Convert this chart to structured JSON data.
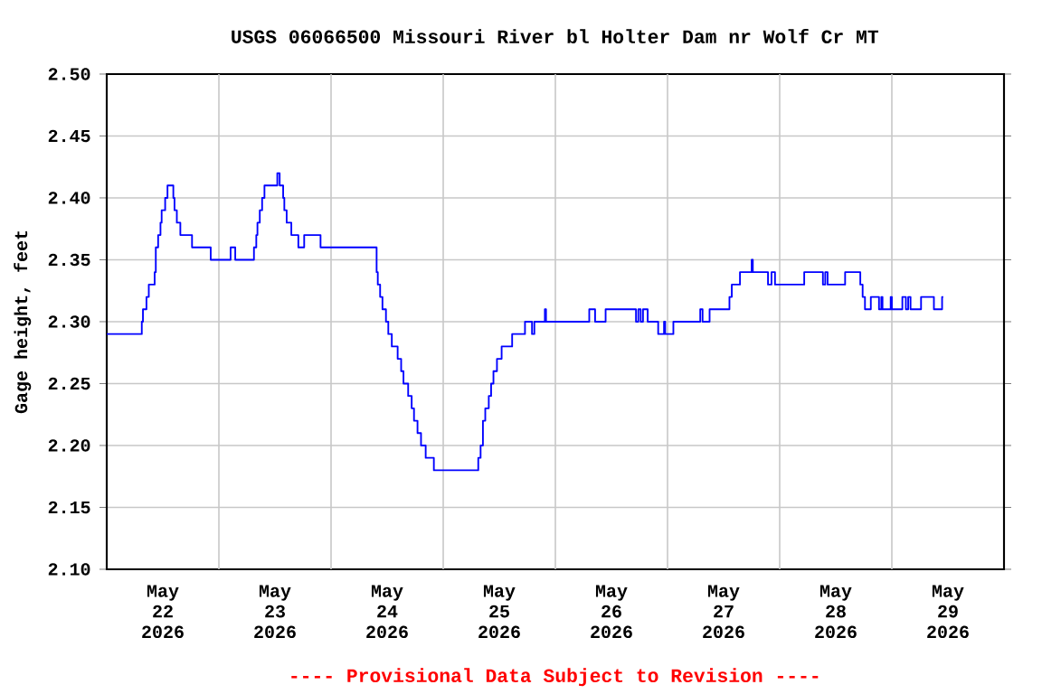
{
  "chart_data": {
    "type": "step",
    "title": "USGS 06066500 Missouri River bl Holter Dam nr Wolf Cr MT",
    "ylabel": "Gage height, feet",
    "annotations": [
      "---- Provisional Data Subject to Revision ----"
    ],
    "xlim": [
      "2026-05-22T00:00",
      "2026-05-30T00:00"
    ],
    "ylim": [
      2.1,
      2.5
    ],
    "xticks": [
      {
        "value": "2026-05-22T12:00",
        "label": "May 22 2026"
      },
      {
        "value": "2026-05-23T00:00",
        "label": null
      },
      {
        "value": "2026-05-23T12:00",
        "label": "May 23 2026"
      },
      {
        "value": "2026-05-24T00:00",
        "label": null
      },
      {
        "value": "2026-05-24T12:00",
        "label": "May 24 2026"
      },
      {
        "value": "2026-05-25T00:00",
        "label": null
      },
      {
        "value": "2026-05-25T12:00",
        "label": "May 25 2026"
      },
      {
        "value": "2026-05-26T00:00",
        "label": null
      },
      {
        "value": "2026-05-26T12:00",
        "label": "May 26 2026"
      },
      {
        "value": "2026-05-27T00:00",
        "label": null
      },
      {
        "value": "2026-05-27T12:00",
        "label": "May 27 2026"
      },
      {
        "value": "2026-05-28T00:00",
        "label": null
      },
      {
        "value": "2026-05-28T12:00",
        "label": "May 28 2026"
      },
      {
        "value": "2026-05-29T00:00",
        "label": null
      },
      {
        "value": "2026-05-29T12:00",
        "label": "May 29 2026"
      }
    ],
    "yticks": [
      {
        "value": 2.1,
        "label": "2.10"
      },
      {
        "value": 2.15,
        "label": "2.15"
      },
      {
        "value": 2.2,
        "label": "2.20"
      },
      {
        "value": 2.25,
        "label": "2.25"
      },
      {
        "value": 2.3,
        "label": "2.30"
      },
      {
        "value": 2.35,
        "label": "2.35"
      },
      {
        "value": 2.4,
        "label": "2.40"
      },
      {
        "value": 2.45,
        "label": "2.45"
      },
      {
        "value": 2.5,
        "label": "2.50"
      }
    ],
    "grid": true,
    "color": "#0000ff",
    "x": [
      "2026-05-22T00:00",
      "2026-05-22T07:30",
      "2026-05-22T07:45",
      "2026-05-22T08:30",
      "2026-05-22T09:00",
      "2026-05-22T10:15",
      "2026-05-22T10:30",
      "2026-05-22T11:00",
      "2026-05-22T11:30",
      "2026-05-22T11:45",
      "2026-05-22T12:30",
      "2026-05-22T13:00",
      "2026-05-22T14:15",
      "2026-05-22T14:30",
      "2026-05-22T15:00",
      "2026-05-22T15:45",
      "2026-05-22T18:15",
      "2026-05-22T22:15",
      "2026-05-23T02:30",
      "2026-05-23T03:30",
      "2026-05-23T07:30",
      "2026-05-23T08:00",
      "2026-05-23T08:15",
      "2026-05-23T08:45",
      "2026-05-23T09:15",
      "2026-05-23T09:45",
      "2026-05-23T12:30",
      "2026-05-23T13:00",
      "2026-05-23T13:45",
      "2026-05-23T14:00",
      "2026-05-23T14:30",
      "2026-05-23T15:30",
      "2026-05-23T17:00",
      "2026-05-23T18:15",
      "2026-05-23T21:45",
      "2026-05-24T09:45",
      "2026-05-24T10:00",
      "2026-05-24T10:30",
      "2026-05-24T11:00",
      "2026-05-24T11:45",
      "2026-05-24T12:15",
      "2026-05-24T13:00",
      "2026-05-24T14:15",
      "2026-05-24T15:00",
      "2026-05-24T15:30",
      "2026-05-24T16:30",
      "2026-05-24T17:15",
      "2026-05-24T17:45",
      "2026-05-24T18:30",
      "2026-05-24T19:15",
      "2026-05-24T20:15",
      "2026-05-24T22:00",
      "2026-05-25T07:30",
      "2026-05-25T08:00",
      "2026-05-25T08:30",
      "2026-05-25T09:00",
      "2026-05-25T09:45",
      "2026-05-25T10:15",
      "2026-05-25T10:45",
      "2026-05-25T11:30",
      "2026-05-25T12:30",
      "2026-05-25T14:45",
      "2026-05-25T17:30",
      "2026-05-25T19:00",
      "2026-05-25T19:30",
      "2026-05-25T21:45",
      "2026-05-25T22:00",
      "2026-05-26T07:15",
      "2026-05-26T08:30",
      "2026-05-26T10:45",
      "2026-05-26T17:15",
      "2026-05-26T17:45",
      "2026-05-26T18:15",
      "2026-05-26T18:45",
      "2026-05-26T19:45",
      "2026-05-26T22:00",
      "2026-05-26T23:15",
      "2026-05-26T23:30",
      "2026-05-27T01:15",
      "2026-05-27T07:00",
      "2026-05-27T07:30",
      "2026-05-27T09:00",
      "2026-05-27T13:15",
      "2026-05-27T13:45",
      "2026-05-27T15:30",
      "2026-05-27T18:00",
      "2026-05-27T18:15",
      "2026-05-27T21:30",
      "2026-05-27T22:15",
      "2026-05-27T23:00",
      "2026-05-28T05:15",
      "2026-05-28T09:15",
      "2026-05-28T09:45",
      "2026-05-28T10:15",
      "2026-05-28T14:00",
      "2026-05-28T17:15",
      "2026-05-28T17:45",
      "2026-05-28T18:15",
      "2026-05-28T19:30",
      "2026-05-28T21:15",
      "2026-05-28T21:45",
      "2026-05-28T22:00",
      "2026-05-28T23:45",
      "2026-05-29T00:00",
      "2026-05-29T02:15",
      "2026-05-29T03:00",
      "2026-05-29T03:30",
      "2026-05-29T04:00",
      "2026-05-29T06:15",
      "2026-05-29T09:00",
      "2026-05-29T10:45",
      "2026-05-29T11:00"
    ],
    "values": [
      2.29,
      2.3,
      2.31,
      2.32,
      2.33,
      2.34,
      2.36,
      2.37,
      2.38,
      2.39,
      2.4,
      2.41,
      2.4,
      2.39,
      2.38,
      2.37,
      2.36,
      2.35,
      2.36,
      2.35,
      2.36,
      2.37,
      2.38,
      2.39,
      2.4,
      2.41,
      2.42,
      2.41,
      2.4,
      2.39,
      2.38,
      2.37,
      2.36,
      2.37,
      2.36,
      2.34,
      2.33,
      2.32,
      2.31,
      2.3,
      2.29,
      2.28,
      2.27,
      2.26,
      2.25,
      2.24,
      2.23,
      2.22,
      2.21,
      2.2,
      2.19,
      2.18,
      2.19,
      2.2,
      2.22,
      2.23,
      2.24,
      2.25,
      2.26,
      2.27,
      2.28,
      2.29,
      2.3,
      2.29,
      2.3,
      2.31,
      2.3,
      2.31,
      2.3,
      2.31,
      2.3,
      2.31,
      2.3,
      2.31,
      2.3,
      2.29,
      2.3,
      2.29,
      2.3,
      2.31,
      2.3,
      2.31,
      2.32,
      2.33,
      2.34,
      2.35,
      2.34,
      2.33,
      2.34,
      2.33,
      2.34,
      2.33,
      2.34,
      2.33,
      2.34,
      2.33,
      2.32,
      2.31,
      2.32,
      2.31,
      2.32,
      2.31,
      2.32,
      2.31,
      2.32,
      2.31,
      2.32,
      2.31,
      2.32,
      2.31,
      2.32,
      2.32
    ]
  }
}
